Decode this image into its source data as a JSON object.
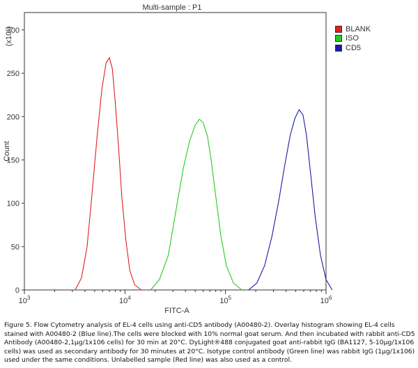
{
  "chart_data": {
    "type": "line",
    "title": "Multi-sample : P1",
    "xlabel": "FITC-A",
    "ylabel": "Count",
    "y_multiplier_label": "(x10¹)",
    "x_scale": "log",
    "xlim": [
      1000,
      1000000
    ],
    "ylim": [
      0,
      320
    ],
    "x_tick_labels": [
      {
        "value": 1000,
        "base": "10",
        "exp": "3"
      },
      {
        "value": 10000,
        "base": "10",
        "exp": "4"
      },
      {
        "value": 100000,
        "base": "10",
        "exp": "5"
      },
      {
        "value": 1000000,
        "base": "10",
        "exp": "6"
      }
    ],
    "y_ticks": [
      0,
      50,
      100,
      150,
      200,
      250,
      300
    ],
    "legend_position": "top-right",
    "series": [
      {
        "name": "BLANK",
        "color": "#e02020",
        "x": [
          3200,
          3700,
          4200,
          4700,
          5300,
          5900,
          6500,
          7000,
          7500,
          8000,
          8600,
          9300,
          10200,
          11200,
          12500,
          14500
        ],
        "y": [
          0,
          14,
          50,
          110,
          178,
          232,
          262,
          268,
          255,
          218,
          168,
          108,
          58,
          22,
          6,
          0
        ]
      },
      {
        "name": "ISO",
        "color": "#22cc22",
        "x": [
          18000,
          22000,
          27000,
          32000,
          38000,
          44000,
          50000,
          55000,
          60000,
          66000,
          72000,
          80000,
          90000,
          102000,
          120000,
          145000
        ],
        "y": [
          0,
          12,
          40,
          90,
          140,
          172,
          190,
          197,
          193,
          178,
          150,
          108,
          62,
          28,
          8,
          0
        ]
      },
      {
        "name": "CD5",
        "color": "#1a1aa8",
        "x": [
          170000,
          205000,
          245000,
          290000,
          340000,
          390000,
          440000,
          490000,
          540000,
          590000,
          640000,
          700000,
          780000,
          880000,
          1000000,
          1150000
        ],
        "y": [
          0,
          8,
          28,
          62,
          104,
          145,
          178,
          198,
          208,
          202,
          178,
          136,
          85,
          40,
          12,
          0
        ]
      }
    ]
  },
  "caption": "Figure 5. Flow Cytometry analysis of EL-4 cells using anti-CD5 antibody (A00480-2). Overlay histogram showing EL-4 cells stained with A00480-2 (Blue line).The cells were blocked with 10% normal goat serum. And then incubated with rabbit anti-CD5 Antibody (A00480-2,1µg/1x106 cells) for 30 min at 20°C. DyLight®488 conjugated goat anti-rabbit IgG (BA1127, 5-10µg/1x106 cells) was used as secondary antibody for 30 minutes at 20°C. Isotype control antibody (Green line) was rabbit IgG (1µg/1x106) used under the same conditions. Unlabelled sample (Red line) was also used as a control."
}
